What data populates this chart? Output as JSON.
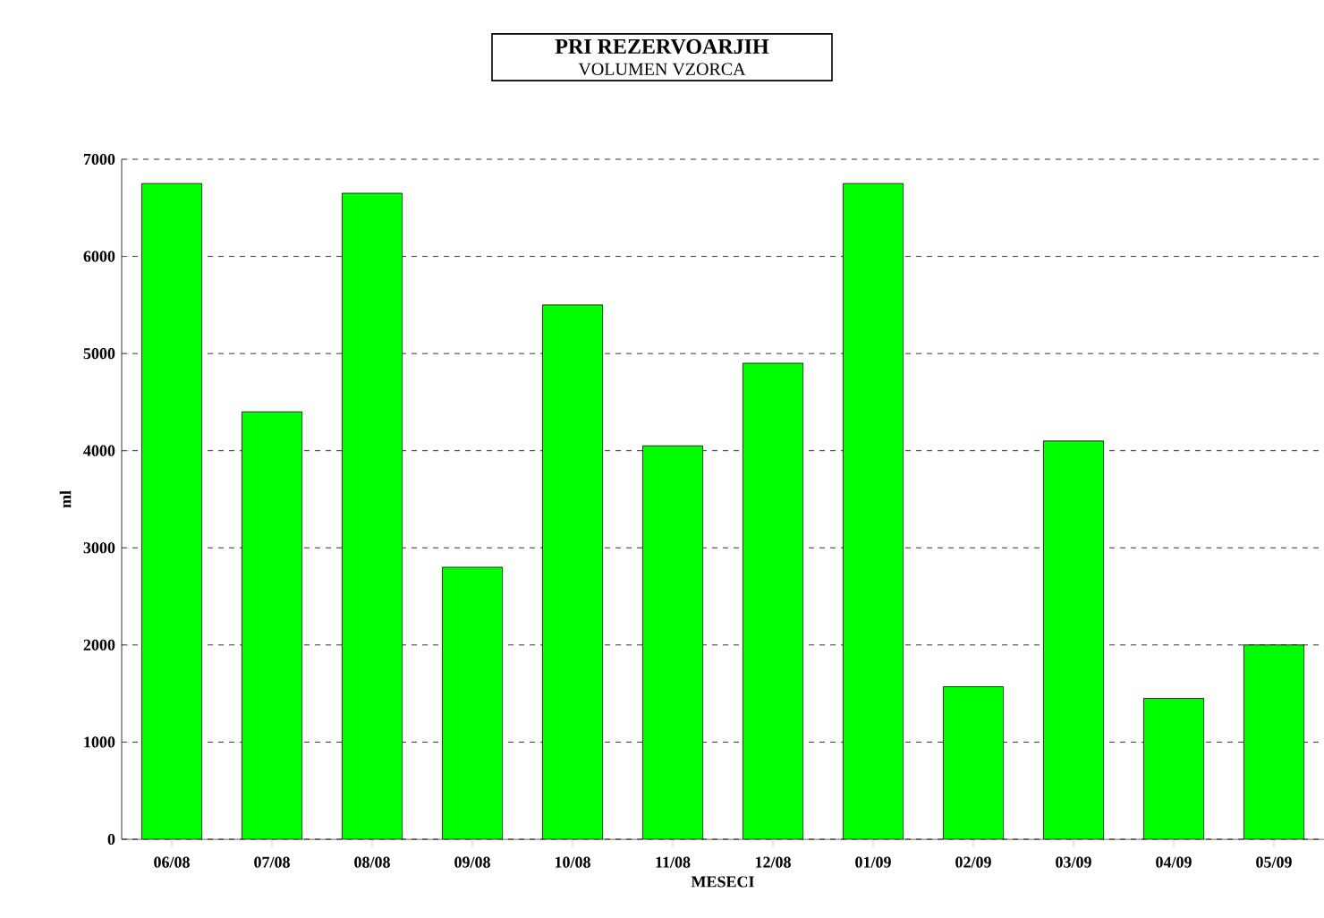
{
  "chart_data": {
    "type": "bar",
    "title": "PRI REZERVOARJIH",
    "subtitle": "VOLUMEN VZORCA",
    "xlabel": "MESECI",
    "ylabel": "ml",
    "categories": [
      "06/08",
      "07/08",
      "08/08",
      "09/08",
      "10/08",
      "11/08",
      "12/08",
      "01/09",
      "02/09",
      "03/09",
      "04/09",
      "05/09"
    ],
    "values": [
      6750,
      4400,
      6650,
      2800,
      5500,
      4050,
      4900,
      6750,
      1570,
      4100,
      1450,
      2000
    ],
    "color": "#00ff00",
    "ylim": [
      0,
      7000
    ],
    "yticks": [
      0,
      1000,
      2000,
      3000,
      4000,
      5000,
      6000,
      7000
    ],
    "grid": "y"
  }
}
